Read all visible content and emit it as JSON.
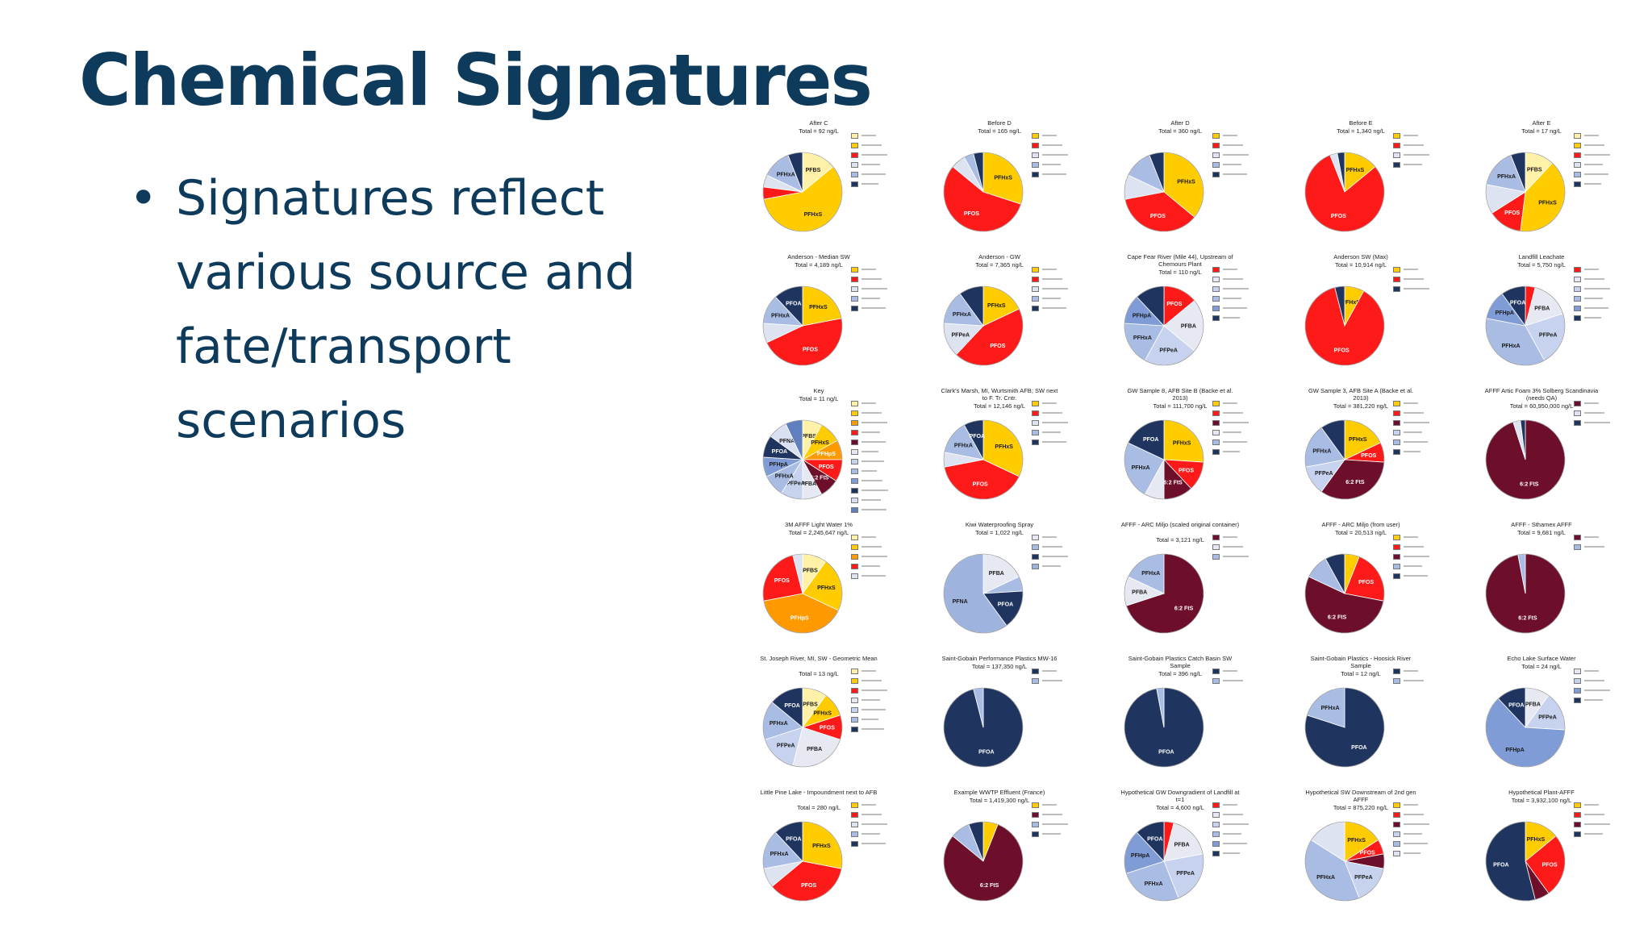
{
  "slide": {
    "title": "Chemical Signatures",
    "title_color": "#0e3b5c",
    "bullet_color": "#0e3b5c",
    "bullets": [
      "Signatures reflect various source and fate/transport scenarios"
    ],
    "bullet_symbol": "•"
  },
  "chart_data": [
    {
      "type": "pie",
      "title": "After C",
      "total": "Total = 92 ng/L",
      "slices": [
        {
          "label": "PFBS",
          "value": 14,
          "color": "#fff2a8"
        },
        {
          "label": "PFHxS",
          "value": 58,
          "color": "#ffcc00"
        },
        {
          "label": "",
          "value": 5,
          "color": "#ff1a1a"
        },
        {
          "label": "",
          "value": 5,
          "color": "#dde3f0"
        },
        {
          "label": "PFHxA",
          "value": 12,
          "color": "#a8bce4"
        },
        {
          "label": "",
          "value": 6,
          "color": "#1f3560"
        }
      ]
    },
    {
      "type": "pie",
      "title": "Before D",
      "total": "Total = 165 ng/L",
      "slices": [
        {
          "label": "PFHxS",
          "value": 30,
          "color": "#ffcc00"
        },
        {
          "label": "PFOS",
          "value": 56,
          "color": "#ff1a1a"
        },
        {
          "label": "",
          "value": 6,
          "color": "#dde3f0"
        },
        {
          "label": "",
          "value": 4,
          "color": "#a8bce4"
        },
        {
          "label": "",
          "value": 4,
          "color": "#1f3560"
        }
      ]
    },
    {
      "type": "pie",
      "title": "After D",
      "total": "Total = 360 ng/L",
      "slices": [
        {
          "label": "PFHxS",
          "value": 36,
          "color": "#ffcc00"
        },
        {
          "label": "PFOS",
          "value": 36,
          "color": "#ff1a1a"
        },
        {
          "label": "",
          "value": 10,
          "color": "#dde3f0"
        },
        {
          "label": "",
          "value": 12,
          "color": "#a8bce4"
        },
        {
          "label": "",
          "value": 6,
          "color": "#1f3560"
        }
      ]
    },
    {
      "type": "pie",
      "title": "Before E",
      "total": "Total = 1,340 ng/L",
      "slices": [
        {
          "label": "PFHxS",
          "value": 14,
          "color": "#ffcc00"
        },
        {
          "label": "PFOS",
          "value": 80,
          "color": "#ff1a1a"
        },
        {
          "label": "",
          "value": 3,
          "color": "#dde3f0"
        },
        {
          "label": "",
          "value": 3,
          "color": "#1f3560"
        }
      ]
    },
    {
      "type": "pie",
      "title": "After E",
      "total": "Total = 17 ng/L",
      "slices": [
        {
          "label": "PFBS",
          "value": 12,
          "color": "#fff2a8"
        },
        {
          "label": "PFHxS",
          "value": 40,
          "color": "#ffcc00"
        },
        {
          "label": "PFOS",
          "value": 14,
          "color": "#ff1a1a"
        },
        {
          "label": "",
          "value": 12,
          "color": "#dde3f0"
        },
        {
          "label": "PFHxA",
          "value": 16,
          "color": "#a8bce4"
        },
        {
          "label": "",
          "value": 6,
          "color": "#1f3560"
        }
      ]
    },
    {
      "type": "pie",
      "title": "Anderson - Median SW",
      "total": "Total = 4,189 ng/L",
      "slices": [
        {
          "label": "PFHxS",
          "value": 22,
          "color": "#ffcc00"
        },
        {
          "label": "PFOS",
          "value": 46,
          "color": "#ff1a1a"
        },
        {
          "label": "",
          "value": 8,
          "color": "#dde3f0"
        },
        {
          "label": "PFHxA",
          "value": 12,
          "color": "#a8bce4"
        },
        {
          "label": "PFOA",
          "value": 12,
          "color": "#1f3560"
        }
      ]
    },
    {
      "type": "pie",
      "title": "Anderson - GW",
      "total": "Total = 7,365 ng/L",
      "slices": [
        {
          "label": "PFHxS",
          "value": 18,
          "color": "#ffcc00"
        },
        {
          "label": "PFOS",
          "value": 44,
          "color": "#ff1a1a"
        },
        {
          "label": "PFPeA",
          "value": 14,
          "color": "#dde3f0"
        },
        {
          "label": "PFHxA",
          "value": 14,
          "color": "#a8bce4"
        },
        {
          "label": "",
          "value": 10,
          "color": "#1f3560"
        }
      ]
    },
    {
      "type": "pie",
      "title": "Cape Fear River (Mile 44), Upstream of Chemours Plant",
      "total": "Total = 110 ng/L",
      "slices": [
        {
          "label": "PFOS",
          "value": 14,
          "color": "#ff1a1a"
        },
        {
          "label": "PFBA",
          "value": 22,
          "color": "#e6e9f2"
        },
        {
          "label": "PFPeA",
          "value": 22,
          "color": "#c7d3ee"
        },
        {
          "label": "PFHxA",
          "value": 18,
          "color": "#a8bce4"
        },
        {
          "label": "PFHpA",
          "value": 12,
          "color": "#7f9cd6"
        },
        {
          "label": "",
          "value": 12,
          "color": "#1f3560"
        }
      ]
    },
    {
      "type": "pie",
      "title": "Anderson SW (Max)",
      "total": "Total = 10,914 ng/L",
      "slices": [
        {
          "label": "PFHxS",
          "value": 8,
          "color": "#ffcc00"
        },
        {
          "label": "PFOS",
          "value": 88,
          "color": "#ff1a1a"
        },
        {
          "label": "",
          "value": 4,
          "color": "#1f3560"
        }
      ]
    },
    {
      "type": "pie",
      "title": "Landfill Leachate",
      "total": "Total = 5,750 ng/L",
      "slices": [
        {
          "label": "",
          "value": 4,
          "color": "#ff1a1a"
        },
        {
          "label": "PFBA",
          "value": 16,
          "color": "#e6e9f2"
        },
        {
          "label": "PFPeA",
          "value": 22,
          "color": "#c7d3ee"
        },
        {
          "label": "PFHxA",
          "value": 36,
          "color": "#a8bce4"
        },
        {
          "label": "PFHpA",
          "value": 12,
          "color": "#7f9cd6"
        },
        {
          "label": "PFOA",
          "value": 10,
          "color": "#1f3560"
        }
      ]
    },
    {
      "type": "pie",
      "title": "Key",
      "total": "Total = 11 ng/L",
      "slices": [
        {
          "label": "PFBS",
          "value": 8,
          "color": "#fff2a8"
        },
        {
          "label": "PFHxS",
          "value": 9,
          "color": "#ffcc00"
        },
        {
          "label": "PFHpS",
          "value": 8,
          "color": "#ff9900"
        },
        {
          "label": "PFOS",
          "value": 9,
          "color": "#ff1a1a"
        },
        {
          "label": "6:2 FtS",
          "value": 8,
          "color": "#6d0f2a"
        },
        {
          "label": "PFBA",
          "value": 8,
          "color": "#e6e9f2"
        },
        {
          "label": "PFPeA",
          "value": 9,
          "color": "#c7d3ee"
        },
        {
          "label": "PFHxA",
          "value": 9,
          "color": "#a8bce4"
        },
        {
          "label": "PFHpA",
          "value": 8,
          "color": "#7f9cd6"
        },
        {
          "label": "PFOA",
          "value": 9,
          "color": "#1f3560"
        },
        {
          "label": "PFNA",
          "value": 8,
          "color": "#d9e0f2"
        },
        {
          "label": "",
          "value": 7,
          "color": "#5f7fbf"
        }
      ]
    },
    {
      "type": "pie",
      "title": "Clark's Marsh, MI, Wurtsmith AFB; SW next to F. Tr. Cntr.",
      "total": "Total = 12,146 ng/L",
      "slices": [
        {
          "label": "PFHxS",
          "value": 32,
          "color": "#ffcc00"
        },
        {
          "label": "PFOS",
          "value": 40,
          "color": "#ff1a1a"
        },
        {
          "label": "",
          "value": 6,
          "color": "#dde3f0"
        },
        {
          "label": "PFHxA",
          "value": 14,
          "color": "#a8bce4"
        },
        {
          "label": "PFOA",
          "value": 8,
          "color": "#1f3560"
        }
      ]
    },
    {
      "type": "pie",
      "title": "GW Sample 8, AFB Site B (Backe et al. 2013)",
      "total": "Total = 111,700 ng/L",
      "slices": [
        {
          "label": "PFHxS",
          "value": 26,
          "color": "#ffcc00"
        },
        {
          "label": "PFOS",
          "value": 12,
          "color": "#ff1a1a"
        },
        {
          "label": "6:2 FtS",
          "value": 12,
          "color": "#6d0f2a"
        },
        {
          "label": "",
          "value": 8,
          "color": "#e6e9f2"
        },
        {
          "label": "PFHxA",
          "value": 24,
          "color": "#a8bce4"
        },
        {
          "label": "PFOA",
          "value": 18,
          "color": "#1f3560"
        }
      ]
    },
    {
      "type": "pie",
      "title": "GW Sample 3, AFB Site A (Backe et al. 2013)",
      "total": "Total = 381,220 ng/L",
      "slices": [
        {
          "label": "PFHxS",
          "value": 18,
          "color": "#ffcc00"
        },
        {
          "label": "PFOS",
          "value": 8,
          "color": "#ff1a1a"
        },
        {
          "label": "6:2 FtS",
          "value": 34,
          "color": "#6d0f2a"
        },
        {
          "label": "PFPeA",
          "value": 12,
          "color": "#c7d3ee"
        },
        {
          "label": "PFHxA",
          "value": 18,
          "color": "#a8bce4"
        },
        {
          "label": "",
          "value": 10,
          "color": "#1f3560"
        }
      ]
    },
    {
      "type": "pie",
      "title": "AFFF Artic Foam 3% Solberg Scandinavia (needs QA)",
      "total": "Total = 60,950,000 ng/L",
      "slices": [
        {
          "label": "6:2 FtS",
          "value": 95,
          "color": "#6d0f2a"
        },
        {
          "label": "",
          "value": 3,
          "color": "#dde3f0"
        },
        {
          "label": "",
          "value": 2,
          "color": "#1f3560"
        }
      ]
    },
    {
      "type": "pie",
      "title": "3M AFFF Light Water 1%",
      "total": "Total = 2,245,647 ng/L",
      "slices": [
        {
          "label": "PFBS",
          "value": 10,
          "color": "#fff2a8"
        },
        {
          "label": "PFHxS",
          "value": 22,
          "color": "#ffcc00"
        },
        {
          "label": "PFHpS",
          "value": 40,
          "color": "#ff9900"
        },
        {
          "label": "PFOS",
          "value": 24,
          "color": "#ff1a1a"
        },
        {
          "label": "",
          "value": 4,
          "color": "#dde3f0"
        }
      ]
    },
    {
      "type": "pie",
      "title": "Kiwi Waterproofing Spray",
      "total": "Total = 1,022 ng/L",
      "slices": [
        {
          "label": "PFBA",
          "value": 18,
          "color": "#e6e9f2"
        },
        {
          "label": "",
          "value": 6,
          "color": "#a8bce4"
        },
        {
          "label": "PFOA",
          "value": 16,
          "color": "#1f3560"
        },
        {
          "label": "PFNA",
          "value": 60,
          "color": "#9fb3df"
        }
      ]
    },
    {
      "type": "pie",
      "title": "AFFF - ARC Miljo (scaled original container)",
      "total": "Total = 3,121 ng/L",
      "slices": [
        {
          "label": "6:2 FtS",
          "value": 70,
          "color": "#6d0f2a"
        },
        {
          "label": "PFBA",
          "value": 12,
          "color": "#e6e9f2"
        },
        {
          "label": "PFHxA",
          "value": 18,
          "color": "#a8bce4"
        }
      ]
    },
    {
      "type": "pie",
      "title": "AFFF - ARC Miljo (from user)",
      "total": "Total = 20,513 ng/L",
      "slices": [
        {
          "label": "",
          "value": 6,
          "color": "#ffcc00"
        },
        {
          "label": "PFOS",
          "value": 22,
          "color": "#ff1a1a"
        },
        {
          "label": "6:2 FtS",
          "value": 54,
          "color": "#6d0f2a"
        },
        {
          "label": "",
          "value": 10,
          "color": "#a8bce4"
        },
        {
          "label": "",
          "value": 8,
          "color": "#1f3560"
        }
      ]
    },
    {
      "type": "pie",
      "title": "AFFF - Sthamex AFFF",
      "total": "Total = 9,681 ng/L",
      "slices": [
        {
          "label": "6:2 FtS",
          "value": 97,
          "color": "#6d0f2a"
        },
        {
          "label": "",
          "value": 3,
          "color": "#a8bce4"
        }
      ]
    },
    {
      "type": "pie",
      "title": "St. Joseph River, MI, SW - Geometric Mean",
      "total": "Total = 13 ng/L",
      "slices": [
        {
          "label": "PFBS",
          "value": 10,
          "color": "#fff2a8"
        },
        {
          "label": "PFHxS",
          "value": 10,
          "color": "#ffcc00"
        },
        {
          "label": "PFOS",
          "value": 10,
          "color": "#ff1a1a"
        },
        {
          "label": "PFBA",
          "value": 24,
          "color": "#e6e9f2"
        },
        {
          "label": "PFPeA",
          "value": 16,
          "color": "#c7d3ee"
        },
        {
          "label": "PFHxA",
          "value": 16,
          "color": "#a8bce4"
        },
        {
          "label": "PFOA",
          "value": 14,
          "color": "#1f3560"
        }
      ]
    },
    {
      "type": "pie",
      "title": "Saint-Gobain Performance Plastics MW-16",
      "total": "Total = 137,350 ng/L",
      "slices": [
        {
          "label": "PFOA",
          "value": 96,
          "color": "#1f3560"
        },
        {
          "label": "",
          "value": 4,
          "color": "#a8bce4"
        }
      ]
    },
    {
      "type": "pie",
      "title": "Saint-Gobain Plastics Catch Basin SW Sample",
      "total": "Total = 396 ng/L",
      "slices": [
        {
          "label": "PFOA",
          "value": 97,
          "color": "#1f3560"
        },
        {
          "label": "",
          "value": 3,
          "color": "#a8bce4"
        }
      ]
    },
    {
      "type": "pie",
      "title": "Saint-Gobain Plastics - Hoosick River Sample",
      "total": "Total = 12 ng/L",
      "slices": [
        {
          "label": "PFOA",
          "value": 80,
          "color": "#1f3560"
        },
        {
          "label": "PFHxA",
          "value": 20,
          "color": "#a8bce4"
        }
      ]
    },
    {
      "type": "pie",
      "title": "Echo Lake Surface Water",
      "total": "Total = 24 ng/L",
      "slices": [
        {
          "label": "PFBA",
          "value": 10,
          "color": "#e6e9f2"
        },
        {
          "label": "PFPeA",
          "value": 16,
          "color": "#c7d3ee"
        },
        {
          "label": "PFHpA",
          "value": 62,
          "color": "#7f9cd6"
        },
        {
          "label": "PFOA",
          "value": 12,
          "color": "#1f3560"
        }
      ]
    },
    {
      "type": "pie",
      "title": "Little Pine Lake - Impoundment next to AFB",
      "total": "Total = 280 ng/L",
      "slices": [
        {
          "label": "PFHxS",
          "value": 28,
          "color": "#ffcc00"
        },
        {
          "label": "PFOS",
          "value": 36,
          "color": "#ff1a1a"
        },
        {
          "label": "",
          "value": 8,
          "color": "#dde3f0"
        },
        {
          "label": "PFHxA",
          "value": 16,
          "color": "#a8bce4"
        },
        {
          "label": "PFOA",
          "value": 12,
          "color": "#1f3560"
        }
      ]
    },
    {
      "type": "pie",
      "title": "Example WWTP Effluent (France)",
      "total": "Total = 1,419,300 ng/L",
      "slices": [
        {
          "label": "",
          "value": 6,
          "color": "#ffcc00"
        },
        {
          "label": "6:2 FtS",
          "value": 80,
          "color": "#6d0f2a"
        },
        {
          "label": "",
          "value": 8,
          "color": "#a8bce4"
        },
        {
          "label": "",
          "value": 6,
          "color": "#1f3560"
        }
      ]
    },
    {
      "type": "pie",
      "title": "Hypothetical GW Downgradient of Landfill at t=1",
      "total": "Total = 4,600 ng/L",
      "slices": [
        {
          "label": "",
          "value": 4,
          "color": "#ff1a1a"
        },
        {
          "label": "PFBA",
          "value": 18,
          "color": "#e6e9f2"
        },
        {
          "label": "PFPeA",
          "value": 22,
          "color": "#c7d3ee"
        },
        {
          "label": "PFHxA",
          "value": 26,
          "color": "#a8bce4"
        },
        {
          "label": "PFHpA",
          "value": 18,
          "color": "#7f9cd6"
        },
        {
          "label": "PFOA",
          "value": 12,
          "color": "#1f3560"
        }
      ]
    },
    {
      "type": "pie",
      "title": "Hypothetical SW Downstream of 2nd gen AFFF",
      "total": "Total = 875,220 ng/L",
      "slices": [
        {
          "label": "PFHxS",
          "value": 16,
          "color": "#ffcc00"
        },
        {
          "label": "PFOS",
          "value": 6,
          "color": "#ff1a1a"
        },
        {
          "label": "",
          "value": 6,
          "color": "#6d0f2a"
        },
        {
          "label": "PFPeA",
          "value": 16,
          "color": "#c7d3ee"
        },
        {
          "label": "PFHxA",
          "value": 40,
          "color": "#a8bce4"
        },
        {
          "label": "",
          "value": 16,
          "color": "#dde3f0"
        }
      ]
    },
    {
      "type": "pie",
      "title": "Hypothetical Plant-AFFF",
      "total": "Total = 3,932,100 ng/L",
      "slices": [
        {
          "label": "PFHxS",
          "value": 14,
          "color": "#ffcc00"
        },
        {
          "label": "PFOS",
          "value": 26,
          "color": "#ff1a1a"
        },
        {
          "label": "",
          "value": 6,
          "color": "#6d0f2a"
        },
        {
          "label": "PFOA",
          "value": 54,
          "color": "#1f3560"
        }
      ]
    }
  ]
}
